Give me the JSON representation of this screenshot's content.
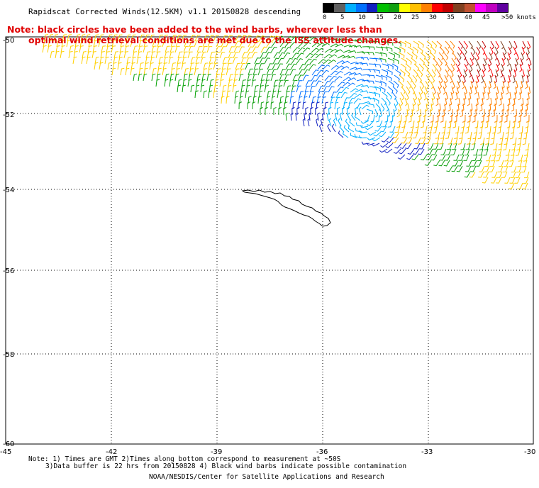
{
  "title": "Rapidscat Corrected Winds(12.5KM) v1.1 20150828 descending",
  "note_line1": "Note: black circles have been added to the wind barbs, wherever less than",
  "note_line2": "optimal wind retrieval conditions are met due to the ISS attitude changes.",
  "legend": {
    "colors": [
      "#000000",
      "#606060",
      "#00b0ff",
      "#0070ff",
      "#1020c0",
      "#00c000",
      "#10a010",
      "#ffff00",
      "#ffc000",
      "#ff8000",
      "#ff0000",
      "#c00000",
      "#804020",
      "#c05030",
      "#ff00ff",
      "#c000c0",
      "#6000a0"
    ],
    "labels": [
      "0",
      "5",
      "10",
      "15",
      "20",
      "25",
      "30",
      "35",
      "40",
      "45",
      ">50 knots"
    ]
  },
  "map": {
    "lat_labels": [
      "-50",
      "-52",
      "-54",
      "-56",
      "-58",
      "-60"
    ],
    "lon_labels": [
      "-45",
      "-42",
      "-39",
      "-36",
      "-33",
      "-30"
    ]
  },
  "footer": {
    "line1": "Note: 1) Times are GMT 2)Times along bottom correspond to measurement at ~50S",
    "line2": "3)Data buffer is 22 hrs from 20150828 4) Black wind barbs indicate possible contamination",
    "credit": "NOAA/NESDIS/Center for Satellite Applications and Research"
  }
}
